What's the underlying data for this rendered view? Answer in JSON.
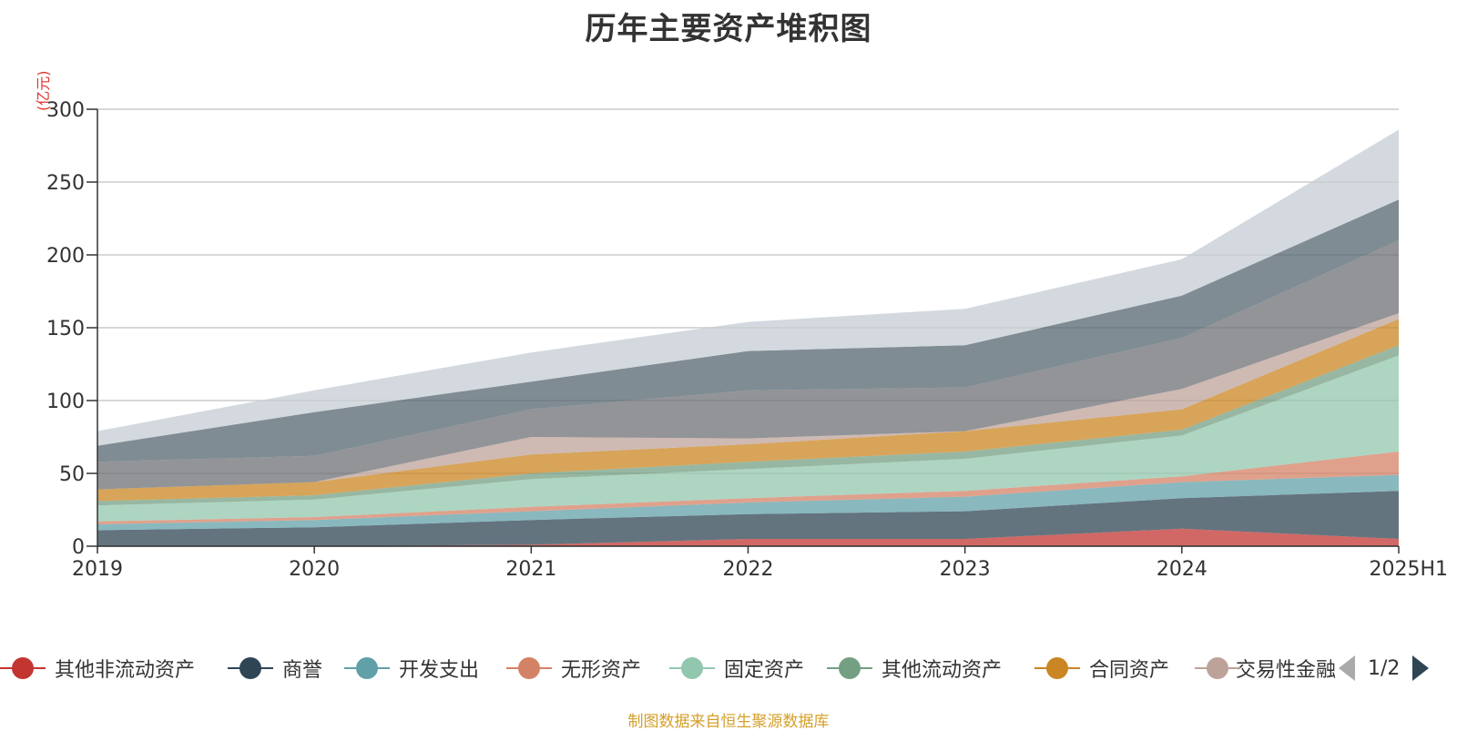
{
  "title": "历年主要资产堆积图",
  "unit_label": "(亿元)",
  "source_note": "制图数据来自恒生聚源数据库",
  "legend": {
    "items": [
      {
        "label": "其他非流动资产",
        "color": "#c23531"
      },
      {
        "label": "商誉",
        "color": "#2f4554"
      },
      {
        "label": "开发支出",
        "color": "#61a0a8"
      },
      {
        "label": "无形资产",
        "color": "#d48265"
      },
      {
        "label": "固定资产",
        "color": "#91c7ae"
      },
      {
        "label": "其他流动资产",
        "color": "#749f83"
      },
      {
        "label": "合同资产",
        "color": "#ca8622"
      },
      {
        "label": "交易性金融"
      }
    ],
    "page": "1/2"
  },
  "chart_data": {
    "type": "area",
    "stacked": true,
    "title": "历年主要资产堆积图",
    "ylabel": "(亿元)",
    "x": [
      "2019",
      "2020",
      "2021",
      "2022",
      "2023",
      "2024",
      "2025H1"
    ],
    "ylim": [
      0,
      300
    ],
    "yticks": [
      0,
      50,
      100,
      150,
      200,
      250,
      300
    ],
    "grid": true,
    "legend_position": "bottom",
    "series": [
      {
        "name": "其他非流动资产",
        "color": "#c23531",
        "values": [
          0,
          0,
          1,
          5,
          5,
          12,
          5
        ]
      },
      {
        "name": "商誉",
        "color": "#2f4554",
        "values": [
          11,
          13,
          17,
          17,
          19,
          21,
          33
        ]
      },
      {
        "name": "开发支出",
        "color": "#61a0a8",
        "values": [
          4,
          5,
          6,
          8,
          10,
          11,
          11
        ]
      },
      {
        "name": "无形资产",
        "color": "#d48265",
        "values": [
          2,
          2,
          3,
          3,
          4,
          4,
          16
        ]
      },
      {
        "name": "固定资产",
        "color": "#91c7ae",
        "values": [
          11,
          12,
          19,
          20,
          22,
          28,
          66
        ]
      },
      {
        "name": "其他流动资产",
        "color": "#749f83",
        "values": [
          3,
          3,
          4,
          5,
          5,
          4,
          7
        ]
      },
      {
        "name": "合同资产",
        "color": "#ca8622",
        "values": [
          8,
          9,
          13,
          12,
          14,
          14,
          18
        ]
      },
      {
        "name": "交易性金融资产",
        "color": "#bda29a",
        "values": [
          0,
          0,
          12,
          4,
          0,
          14,
          4
        ]
      },
      {
        "color": "#6e7074",
        "values": [
          19,
          18,
          19,
          33,
          30,
          35,
          50
        ]
      },
      {
        "color": "#546570",
        "values": [
          11,
          30,
          19,
          27,
          29,
          29,
          28
        ]
      },
      {
        "color": "#c4ccd3",
        "values": [
          10,
          15,
          20,
          20,
          25,
          25,
          48
        ]
      }
    ]
  }
}
